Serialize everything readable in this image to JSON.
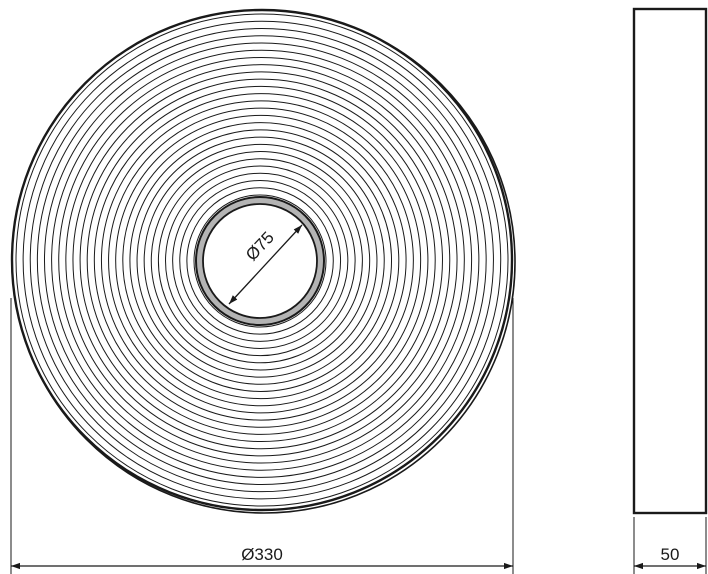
{
  "drawing": {
    "outer_diameter_label": "Ø330",
    "inner_diameter_label": "Ø75",
    "width_label": "50",
    "ring_count": 26,
    "colors": {
      "line": "#1a1a1a",
      "core_gray": "#b4b4b4",
      "background": "#ffffff"
    }
  }
}
